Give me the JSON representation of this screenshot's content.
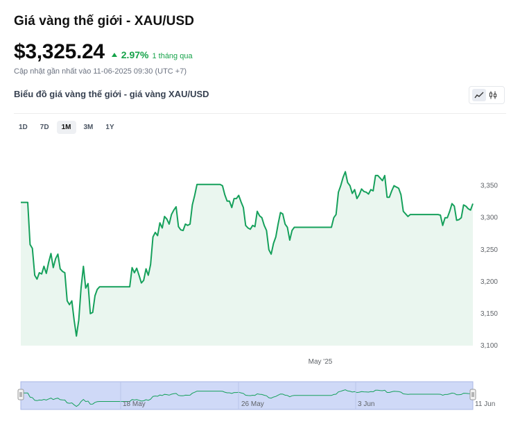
{
  "header": {
    "title": "Giá vàng thế giới - XAU/USD",
    "price": "$3,325.24",
    "change_pct": "2.97%",
    "change_period": "1 tháng qua",
    "updated": "Cập nhật gần nhất vào 11-06-2025 09:30 (UTC +7)"
  },
  "chart_section": {
    "subtitle": "Biểu đồ giá vàng thế giới - giá vàng XAU/USD",
    "toggle": {
      "line_icon": "line-chart-icon",
      "candle_icon": "candlestick-icon"
    },
    "ranges": [
      "1D",
      "7D",
      "1M",
      "3M",
      "1Y"
    ],
    "active_range": "1M"
  },
  "colors": {
    "line": "#15a05b",
    "fill": "#eaf6ef",
    "up": "#16a34a",
    "navigator_mask": "#cfd9f7"
  },
  "chart_data": {
    "type": "area",
    "title": "Biểu đồ giá vàng thế giới - giá vàng XAU/USD",
    "ylim": [
      3100,
      3380
    ],
    "yticks": [
      3100,
      3150,
      3200,
      3250,
      3300,
      3350
    ],
    "ytick_labels": [
      "3,100",
      "3,150",
      "3,200",
      "3,250",
      "3,300",
      "3,350"
    ],
    "xtick_labels": [
      "May '25"
    ],
    "grid": false,
    "navigator_labels": [
      "18 May",
      "26 May",
      "3 Jun",
      "11 Jun"
    ],
    "series": [
      {
        "values": [
          3324,
          3324,
          3324,
          3324,
          3258,
          3252,
          3210,
          3204,
          3214,
          3212,
          3224,
          3213,
          3230,
          3244,
          3222,
          3236,
          3243,
          3220,
          3216,
          3214,
          3170,
          3164,
          3170,
          3140,
          3115,
          3140,
          3190,
          3224,
          3190,
          3197,
          3150,
          3152,
          3178,
          3188,
          3192,
          3192,
          3192,
          3192,
          3192,
          3192,
          3192,
          3192,
          3192,
          3192,
          3192,
          3192,
          3192,
          3192,
          3222,
          3214,
          3221,
          3210,
          3198,
          3202,
          3220,
          3210,
          3227,
          3270,
          3277,
          3272,
          3292,
          3284,
          3302,
          3298,
          3290,
          3305,
          3312,
          3317,
          3286,
          3281,
          3280,
          3290,
          3288,
          3290,
          3320,
          3335,
          3352,
          3352,
          3352,
          3352,
          3352,
          3352,
          3352,
          3352,
          3352,
          3352,
          3352,
          3350,
          3336,
          3326,
          3326,
          3316,
          3330,
          3330,
          3335,
          3325,
          3316,
          3288,
          3284,
          3282,
          3288,
          3286,
          3310,
          3303,
          3300,
          3288,
          3280,
          3250,
          3243,
          3260,
          3270,
          3290,
          3308,
          3306,
          3290,
          3285,
          3265,
          3280,
          3285,
          3285,
          3285,
          3285,
          3285,
          3285,
          3285,
          3285,
          3285,
          3285,
          3285,
          3285,
          3285,
          3285,
          3285,
          3285,
          3285,
          3300,
          3305,
          3340,
          3350,
          3363,
          3372,
          3355,
          3350,
          3338,
          3344,
          3330,
          3336,
          3345,
          3341,
          3340,
          3337,
          3344,
          3342,
          3366,
          3366,
          3362,
          3358,
          3366,
          3332,
          3332,
          3342,
          3350,
          3348,
          3346,
          3336,
          3310,
          3306,
          3302,
          3305,
          3305,
          3305,
          3305,
          3305,
          3305,
          3305,
          3305,
          3305,
          3305,
          3305,
          3305,
          3305,
          3304,
          3288,
          3300,
          3300,
          3310,
          3322,
          3318,
          3296,
          3297,
          3300,
          3320,
          3318,
          3314,
          3312,
          3322
        ]
      }
    ]
  }
}
